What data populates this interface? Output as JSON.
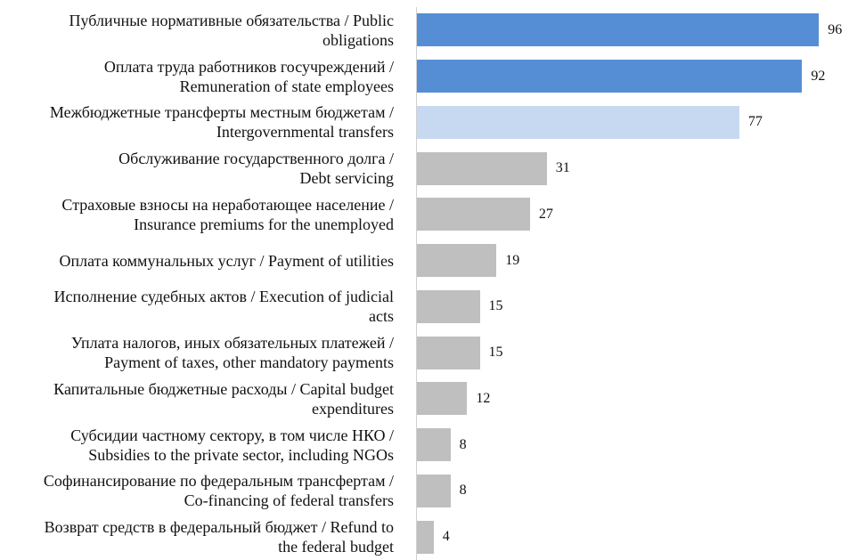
{
  "chart_data": {
    "type": "bar",
    "orientation": "horizontal",
    "categories": [
      "Публичные нормативные обязательства / Public\nobligations",
      "Оплата труда работников госучреждений /\nRemuneration of state employees",
      "Межбюджетные трансферты местным бюджетам /\nIntergovernmental transfers",
      "Обслуживание государственного долга /\nDebt servicing",
      "Страховые взносы на неработающее население /\nInsurance premiums for the unemployed",
      "Оплата коммунальных услуг / Payment of utilities",
      "Исполнение судебных актов / Execution of judicial\nacts",
      "Уплата налогов, иных обязательных платежей /\nPayment of taxes, other mandatory payments",
      "Капитальные бюджетные расходы / Capital budget\nexpenditures",
      "Субсидии частному сектору, в том числе НКО /\nSubsidies to the private sector, including NGOs",
      "Софинансирование по федеральным трансфертам /\nCo-financing of federal transfers",
      "Возврат средств в федеральный бюджет / Refund to\nthe federal budget"
    ],
    "values": [
      96,
      92,
      77,
      31,
      27,
      19,
      15,
      15,
      12,
      8,
      8,
      4
    ],
    "value_labels": [
      "96",
      "92",
      "77",
      "31",
      "27",
      "19",
      "15",
      "15",
      "12",
      "8",
      "8",
      "4"
    ],
    "bar_colors": [
      "#558ed5",
      "#558ed5",
      "#c6d9f1",
      "#bfbfbf",
      "#bfbfbf",
      "#bfbfbf",
      "#bfbfbf",
      "#bfbfbf",
      "#bfbfbf",
      "#bfbfbf",
      "#bfbfbf",
      "#bfbfbf"
    ],
    "xlim": [
      0,
      100
    ],
    "grid": false,
    "legend": "none",
    "title": "",
    "xlabel": "",
    "ylabel": ""
  }
}
